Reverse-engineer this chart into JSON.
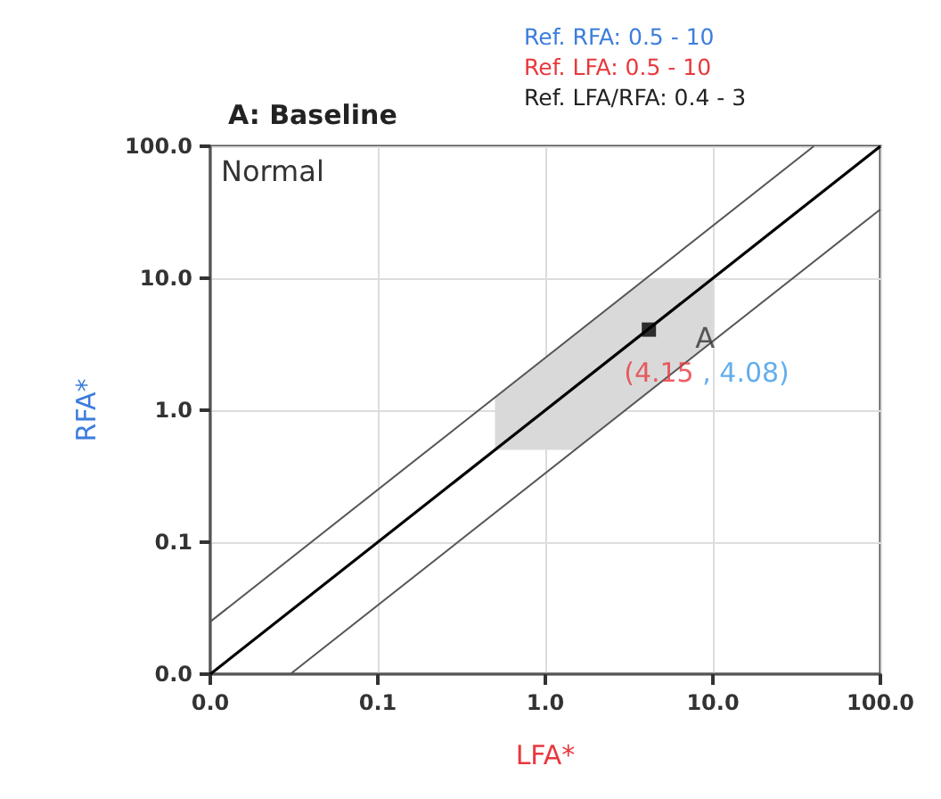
{
  "chart_data": {
    "type": "scatter",
    "title": "A: Baseline",
    "xlabel": "LFA*",
    "ylabel": "RFA*",
    "annotations": [
      "Ref. RFA: 0.5 - 10",
      "Ref. LFA: 0.5 - 10",
      "Ref. LFA/RFA: 0.4 - 3",
      "Normal"
    ],
    "log": "xy",
    "grid": true,
    "legend": false,
    "xlim": [
      0.01,
      100
    ],
    "ylim": [
      0.01,
      100
    ],
    "xticks": [
      {
        "value": 0.01,
        "label": "0.0"
      },
      0.1,
      {
        "value": 1,
        "label": "1.0"
      },
      {
        "value": 10,
        "label": "10.0"
      },
      {
        "value": 100,
        "label": "100.0"
      }
    ],
    "yticks": [
      {
        "value": 0.01,
        "label": "0.0"
      },
      0.1,
      {
        "value": 1,
        "label": "1.0"
      },
      {
        "value": 10,
        "label": "10.0"
      },
      {
        "value": 100,
        "label": "100.0"
      }
    ],
    "series": [
      {
        "type": "area",
        "marker": "none",
        "color": "#d9d9d9",
        "x": [
          0.5,
          1.5,
          10,
          10,
          4,
          0.5
        ],
        "values": [
          0.5,
          0.5,
          3.33,
          10,
          10,
          1.25
        ]
      },
      {
        "type": "line",
        "marker": "none",
        "color": "#000000",
        "x": [
          0.01,
          100
        ],
        "values": [
          0.01,
          100
        ]
      },
      {
        "type": "line",
        "marker": "none",
        "color": "#555555",
        "x": [
          0.01,
          40
        ],
        "values": [
          0.025,
          100
        ]
      },
      {
        "type": "line",
        "marker": "none",
        "color": "#555555",
        "x": [
          0.03,
          100
        ],
        "values": [
          0.01,
          33.3
        ]
      },
      {
        "marker": "square",
        "name": "A",
        "color": "#000000",
        "x": [
          4.15
        ],
        "values": [
          4.08
        ],
        "value_labels": [
          "(4.15 , 4.08)"
        ]
      }
    ]
  }
}
